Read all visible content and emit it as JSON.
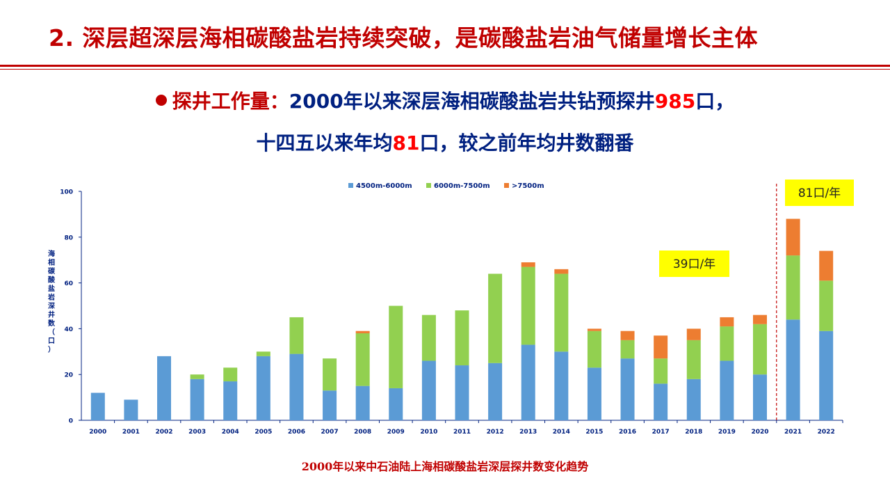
{
  "slide": {
    "title": "2. 深层超深层海相碳酸盐岩持续突破，是碳酸盐岩油气储量增长主体",
    "bullet": {
      "label": "探井工作量：",
      "line1_a": "2000年以来深层海相碳酸盐岩共钻预探井",
      "line1_num": "985",
      "line1_b": "口，",
      "line2_a": "十四五以来年均",
      "line2_num": "81",
      "line2_b": "口，较之前年均井数翻番"
    },
    "caption": "2000年以来中石油陆上海相碳酸盐岩深层探井数变化趋势"
  },
  "colors": {
    "title": "#c00000",
    "text": "#002080",
    "highlight": "#ff0000",
    "s1": "#5b9bd5",
    "s2": "#92d050",
    "s3": "#ed7d31",
    "callout_bg": "#ffff00",
    "divider": "#c00000"
  },
  "chart_data": {
    "type": "bar",
    "stacked": true,
    "categories": [
      "2000",
      "2001",
      "2002",
      "2003",
      "2004",
      "2005",
      "2006",
      "2007",
      "2008",
      "2009",
      "2010",
      "2011",
      "2012",
      "2013",
      "2014",
      "2015",
      "2016",
      "2017",
      "2018",
      "2019",
      "2020",
      "2021",
      "2022"
    ],
    "series": [
      {
        "name": "4500m-6000m",
        "values": [
          12,
          9,
          28,
          18,
          17,
          28,
          29,
          13,
          15,
          14,
          26,
          24,
          25,
          33,
          30,
          23,
          27,
          16,
          18,
          26,
          20,
          44,
          39
        ]
      },
      {
        "name": "6000m-7500m",
        "values": [
          0,
          0,
          0,
          2,
          6,
          2,
          16,
          14,
          23,
          36,
          20,
          24,
          39,
          34,
          34,
          16,
          8,
          11,
          17,
          15,
          22,
          28,
          22
        ]
      },
      {
        "name": ">7500m",
        "values": [
          0,
          0,
          0,
          0,
          0,
          0,
          0,
          0,
          1,
          0,
          0,
          0,
          0,
          2,
          2,
          1,
          4,
          10,
          5,
          4,
          4,
          16,
          13
        ]
      }
    ],
    "ylabel": "海相碳酸盐岩深井数（口）",
    "ylim": [
      0,
      100
    ],
    "yticks": [
      0,
      20,
      40,
      60,
      80,
      100
    ],
    "legend_position": "top-center",
    "grid": false,
    "annotations": [
      {
        "text": "39口/年",
        "period": "2000-2020"
      },
      {
        "text": "81口/年",
        "period": "2021-2022"
      }
    ],
    "divider_between": [
      "2020",
      "2021"
    ]
  }
}
